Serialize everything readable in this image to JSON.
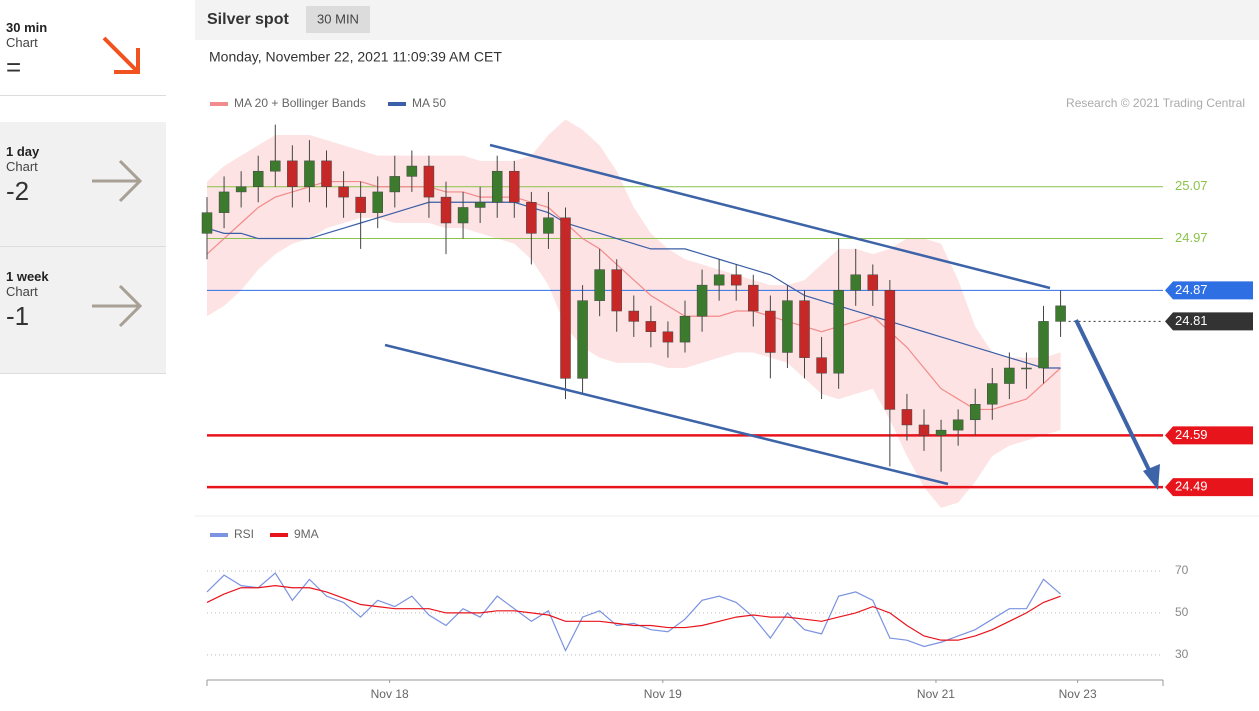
{
  "sidebar": [
    {
      "period": "30 min",
      "label": "Chart",
      "value": "="
    },
    {
      "period": "1 day",
      "label": "Chart",
      "value": "-2"
    },
    {
      "period": "1 week",
      "label": "Chart",
      "value": "-1"
    }
  ],
  "chart_data": [
    {
      "type": "candlestick",
      "title": "Silver spot",
      "timeframe": "30 MIN",
      "subtitle": "Monday, November 22, 2021 11:09:39 AM CET",
      "credit": "Research © 2021 Trading Central",
      "up_color": "#3c7a2e",
      "down_color": "#c62828",
      "open": [
        24.98,
        25.02,
        25.06,
        25.07,
        25.1,
        25.12,
        25.07,
        25.12,
        25.07,
        25.05,
        25.02,
        25.06,
        25.09,
        25.11,
        25.05,
        25.0,
        25.03,
        25.04,
        25.1,
        25.04,
        24.98,
        25.01,
        24.7,
        24.85,
        24.91,
        24.83,
        24.81,
        24.79,
        24.77,
        24.82,
        24.88,
        24.9,
        24.88,
        24.83,
        24.75,
        24.85,
        24.74,
        24.71,
        24.87,
        24.9,
        24.87,
        24.64,
        24.61,
        24.59,
        24.6,
        24.62,
        24.65,
        24.69,
        24.72,
        24.72,
        24.81
      ],
      "high": [
        25.05,
        25.09,
        25.1,
        25.13,
        25.19,
        25.15,
        25.16,
        25.14,
        25.1,
        25.08,
        25.09,
        25.13,
        25.14,
        25.13,
        25.08,
        25.06,
        25.07,
        25.13,
        25.12,
        25.06,
        25.06,
        25.03,
        24.88,
        24.95,
        24.93,
        24.86,
        24.84,
        24.81,
        24.85,
        24.91,
        24.93,
        24.92,
        24.9,
        24.86,
        24.88,
        24.87,
        24.78,
        24.97,
        24.95,
        24.92,
        24.89,
        24.67,
        24.64,
        24.62,
        24.64,
        24.68,
        24.72,
        24.75,
        24.75,
        24.84,
        24.87
      ],
      "low": [
        24.93,
        24.99,
        25.03,
        25.04,
        25.07,
        25.03,
        25.04,
        25.03,
        25.01,
        24.95,
        24.99,
        25.03,
        25.06,
        25.01,
        24.94,
        24.97,
        25.0,
        25.01,
        25.01,
        24.92,
        24.95,
        24.66,
        24.67,
        24.82,
        24.79,
        24.78,
        24.76,
        24.74,
        24.75,
        24.79,
        24.85,
        24.85,
        24.8,
        24.7,
        24.72,
        24.7,
        24.66,
        24.68,
        24.84,
        24.84,
        24.53,
        24.58,
        24.56,
        24.52,
        24.57,
        24.59,
        24.62,
        24.66,
        24.68,
        24.69,
        24.78
      ],
      "close": [
        25.02,
        25.06,
        25.07,
        25.1,
        25.12,
        25.07,
        25.12,
        25.07,
        25.05,
        25.02,
        25.06,
        25.09,
        25.11,
        25.05,
        25.0,
        25.03,
        25.04,
        25.1,
        25.04,
        24.98,
        25.01,
        24.7,
        24.85,
        24.91,
        24.83,
        24.81,
        24.79,
        24.77,
        24.82,
        24.88,
        24.9,
        24.88,
        24.83,
        24.75,
        24.85,
        24.74,
        24.71,
        24.87,
        24.9,
        24.87,
        24.64,
        24.61,
        24.59,
        24.6,
        24.62,
        24.65,
        24.69,
        24.72,
        24.72,
        24.81,
        24.84
      ],
      "series": [
        {
          "name": "MA 20 + Bollinger Bands",
          "color": "#f28b8b",
          "band_color": "#fde3e3",
          "values": [
            24.94,
            24.97,
            25.0,
            25.03,
            25.05,
            25.06,
            25.07,
            25.08,
            25.08,
            25.08,
            25.07,
            25.07,
            25.07,
            25.07,
            25.06,
            25.06,
            25.05,
            25.05,
            25.05,
            25.04,
            25.03,
            25.0,
            24.97,
            24.95,
            24.92,
            24.89,
            24.86,
            24.84,
            24.82,
            24.82,
            24.82,
            24.83,
            24.83,
            24.82,
            24.81,
            24.8,
            24.79,
            24.8,
            24.81,
            24.82,
            24.79,
            24.76,
            24.72,
            24.68,
            24.66,
            24.64,
            24.64,
            24.65,
            24.66,
            24.69,
            24.72
          ],
          "upper": [
            25.08,
            25.11,
            25.13,
            25.15,
            25.17,
            25.17,
            25.17,
            25.16,
            25.15,
            25.14,
            25.13,
            25.13,
            25.13,
            25.13,
            25.13,
            25.13,
            25.12,
            25.12,
            25.12,
            25.13,
            25.17,
            25.2,
            25.18,
            25.15,
            25.1,
            25.03,
            24.98,
            24.95,
            24.93,
            24.92,
            24.91,
            24.9,
            24.89,
            24.88,
            24.88,
            24.89,
            24.92,
            24.95,
            24.95,
            24.94,
            24.95,
            24.97,
            24.97,
            24.96,
            24.89,
            24.8,
            24.75,
            24.74,
            24.74,
            24.74,
            24.75
          ],
          "lower": [
            24.82,
            24.84,
            24.87,
            24.91,
            24.94,
            24.96,
            24.97,
            24.99,
            25.0,
            25.01,
            25.01,
            25.0,
            25.0,
            25.0,
            24.99,
            24.99,
            24.98,
            24.97,
            24.96,
            24.93,
            24.88,
            24.8,
            24.76,
            24.74,
            24.73,
            24.73,
            24.73,
            24.72,
            24.72,
            24.73,
            24.74,
            24.75,
            24.75,
            24.74,
            24.73,
            24.7,
            24.67,
            24.66,
            24.67,
            24.68,
            24.62,
            24.55,
            24.49,
            24.45,
            24.46,
            24.5,
            24.55,
            24.57,
            24.58,
            24.59,
            24.6
          ]
        },
        {
          "name": "MA 50",
          "color": "#3b5ea8",
          "values": [
            24.99,
            24.98,
            24.98,
            24.97,
            24.97,
            24.97,
            24.97,
            24.98,
            24.99,
            25.0,
            25.01,
            25.02,
            25.03,
            25.04,
            25.04,
            25.04,
            25.04,
            25.04,
            25.04,
            25.03,
            25.02,
            25.0,
            24.99,
            24.98,
            24.97,
            24.96,
            24.95,
            24.95,
            24.95,
            24.94,
            24.93,
            24.92,
            24.91,
            24.9,
            24.88,
            24.86,
            24.85,
            24.84,
            24.83,
            24.82,
            24.81,
            24.8,
            24.79,
            24.78,
            24.77,
            24.76,
            24.75,
            24.74,
            24.73,
            24.72,
            24.72
          ]
        }
      ],
      "levels": [
        {
          "value": 25.07,
          "color": "#8bc34a",
          "style": "plain"
        },
        {
          "value": 24.97,
          "color": "#8bc34a",
          "style": "plain"
        },
        {
          "value": 24.87,
          "color": "#2f6fe4",
          "style": "tag"
        },
        {
          "value": 24.81,
          "color": "#333333",
          "style": "dotted-tag"
        },
        {
          "value": 24.59,
          "color": "#e8141c",
          "style": "tag"
        },
        {
          "value": 24.49,
          "color": "#e8141c",
          "style": "tag"
        }
      ],
      "xlim": [
        0,
        56
      ],
      "ylim": [
        24.44,
        25.28
      ]
    },
    {
      "type": "line",
      "series": [
        {
          "name": "RSI",
          "color": "#7b93e0",
          "values": [
            60,
            68,
            63,
            62,
            69,
            56,
            66,
            58,
            55,
            48,
            56,
            53,
            58,
            49,
            44,
            52,
            48,
            58,
            52,
            46,
            51,
            32,
            48,
            51,
            44,
            45,
            42,
            41,
            47,
            56,
            58,
            55,
            48,
            38,
            50,
            42,
            40,
            58,
            60,
            56,
            38,
            37,
            34,
            36,
            39,
            42,
            47,
            52,
            52,
            66,
            59
          ]
        },
        {
          "name": "9MA",
          "color": "#e8141c",
          "values": [
            55,
            59,
            62,
            62,
            63,
            62,
            62,
            60,
            57,
            54,
            53,
            52,
            52,
            52,
            50,
            50,
            50,
            51,
            51,
            50,
            49,
            46,
            46,
            46,
            45,
            44,
            44,
            43,
            43,
            44,
            46,
            48,
            49,
            48,
            48,
            47,
            46,
            48,
            50,
            53,
            50,
            44,
            39,
            37,
            37,
            39,
            42,
            46,
            50,
            55,
            58
          ]
        }
      ],
      "ylim": [
        18,
        80
      ],
      "yticks": [
        70,
        50,
        30
      ],
      "grid": true,
      "xlim": [
        0,
        56
      ],
      "xticks": [
        {
          "value": 10.7,
          "label": "Nov 18"
        },
        {
          "value": 26.7,
          "label": "Nov 19"
        },
        {
          "value": 42.7,
          "label": "Nov 21"
        },
        {
          "value": 51,
          "label": "Nov 23"
        }
      ]
    }
  ]
}
